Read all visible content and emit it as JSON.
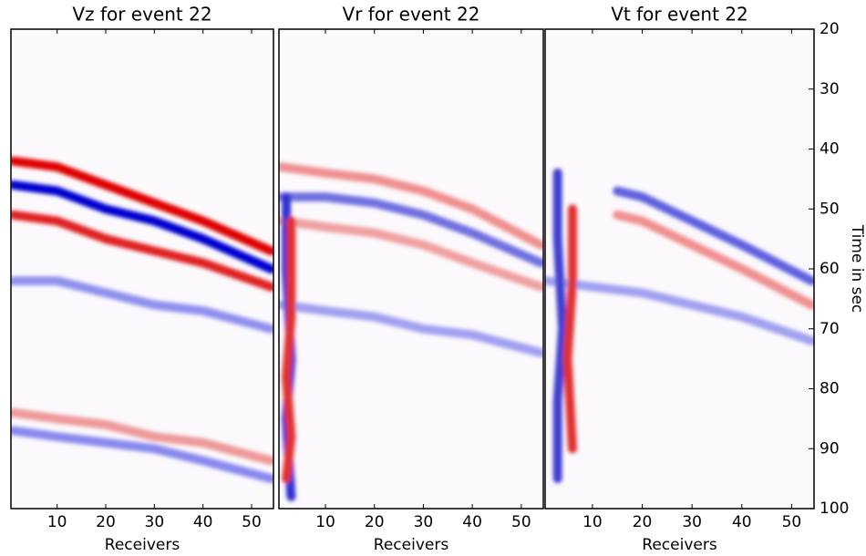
{
  "chart_data": [
    {
      "type": "wavefield",
      "title": "Vz for event 22",
      "x_label": "Receivers",
      "xlim": [
        0.5,
        54.5
      ],
      "xticks": [
        10,
        20,
        30,
        40,
        50
      ],
      "ylim": [
        100,
        20
      ],
      "bands": [
        {
          "color": "#e00000",
          "x": [
            1,
            10,
            20,
            30,
            40,
            54
          ],
          "y": [
            42,
            43,
            46,
            49,
            52,
            57
          ]
        },
        {
          "color": "#0000d0",
          "x": [
            1,
            10,
            20,
            30,
            40,
            54
          ],
          "y": [
            46,
            47,
            50,
            52,
            55,
            60
          ]
        },
        {
          "color": "#e02020",
          "x": [
            1,
            10,
            20,
            30,
            40,
            54
          ],
          "y": [
            51,
            52,
            55,
            57,
            59,
            63
          ]
        },
        {
          "color": "#9090ee",
          "x": [
            1,
            10,
            20,
            30,
            40,
            54
          ],
          "y": [
            62,
            62,
            64,
            66,
            67,
            70
          ]
        },
        {
          "color": "#ee9999",
          "x": [
            1,
            10,
            20,
            30,
            40,
            54
          ],
          "y": [
            84,
            85,
            86,
            88,
            89,
            92
          ]
        },
        {
          "color": "#8888ee",
          "x": [
            1,
            10,
            20,
            30,
            40,
            54
          ],
          "y": [
            87,
            88,
            89,
            90,
            92,
            95
          ]
        }
      ]
    },
    {
      "type": "wavefield",
      "title": "Vr for event 22",
      "x_label": "Receivers",
      "xlim": [
        0.5,
        54.5
      ],
      "xticks": [
        10,
        20,
        30,
        40,
        50
      ],
      "ylim": [
        100,
        20
      ],
      "bands": [
        {
          "color": "#f09090",
          "x": [
            1,
            10,
            20,
            30,
            40,
            54
          ],
          "y": [
            43,
            44,
            45,
            47,
            50,
            56
          ]
        },
        {
          "color": "#7070e0",
          "x": [
            1,
            10,
            20,
            30,
            40,
            54
          ],
          "y": [
            48,
            48,
            49,
            51,
            54,
            59
          ]
        },
        {
          "color": "#f0a0a0",
          "x": [
            1,
            10,
            20,
            30,
            40,
            54
          ],
          "y": [
            52,
            53,
            54,
            56,
            59,
            63
          ]
        },
        {
          "color": "#a0a0f0",
          "x": [
            1,
            10,
            20,
            30,
            40,
            54
          ],
          "y": [
            66,
            67,
            68,
            70,
            71,
            74
          ]
        },
        {
          "color": "#3030d0",
          "x": [
            2,
            2,
            3,
            2,
            3
          ],
          "y": [
            48,
            60,
            75,
            85,
            98
          ]
        },
        {
          "color": "#e03030",
          "x": [
            3,
            3,
            2,
            3,
            2
          ],
          "y": [
            52,
            68,
            78,
            88,
            95
          ]
        }
      ]
    },
    {
      "type": "wavefield",
      "title": "Vt for event 22",
      "x_label": "Receivers",
      "y_label": "Time in sec",
      "xlim": [
        0.5,
        54.5
      ],
      "xticks": [
        10,
        20,
        30,
        40,
        50
      ],
      "ylim": [
        100,
        20
      ],
      "yticks": [
        20,
        30,
        40,
        50,
        60,
        70,
        80,
        90,
        100
      ],
      "bands": [
        {
          "color": "#6060e0",
          "x": [
            15,
            20,
            30,
            40,
            54
          ],
          "y": [
            47,
            48,
            52,
            56,
            62
          ]
        },
        {
          "color": "#f09090",
          "x": [
            15,
            20,
            30,
            40,
            54
          ],
          "y": [
            51,
            52,
            56,
            60,
            66
          ]
        },
        {
          "color": "#a0a0f0",
          "x": [
            1,
            10,
            20,
            30,
            40,
            54
          ],
          "y": [
            62,
            63,
            64,
            66,
            68,
            72
          ]
        },
        {
          "color": "#4040d0",
          "x": [
            3,
            3,
            4,
            3,
            3
          ],
          "y": [
            44,
            55,
            70,
            82,
            95
          ]
        },
        {
          "color": "#e03030",
          "x": [
            6,
            6,
            5,
            6
          ],
          "y": [
            50,
            62,
            75,
            90
          ]
        }
      ]
    }
  ]
}
